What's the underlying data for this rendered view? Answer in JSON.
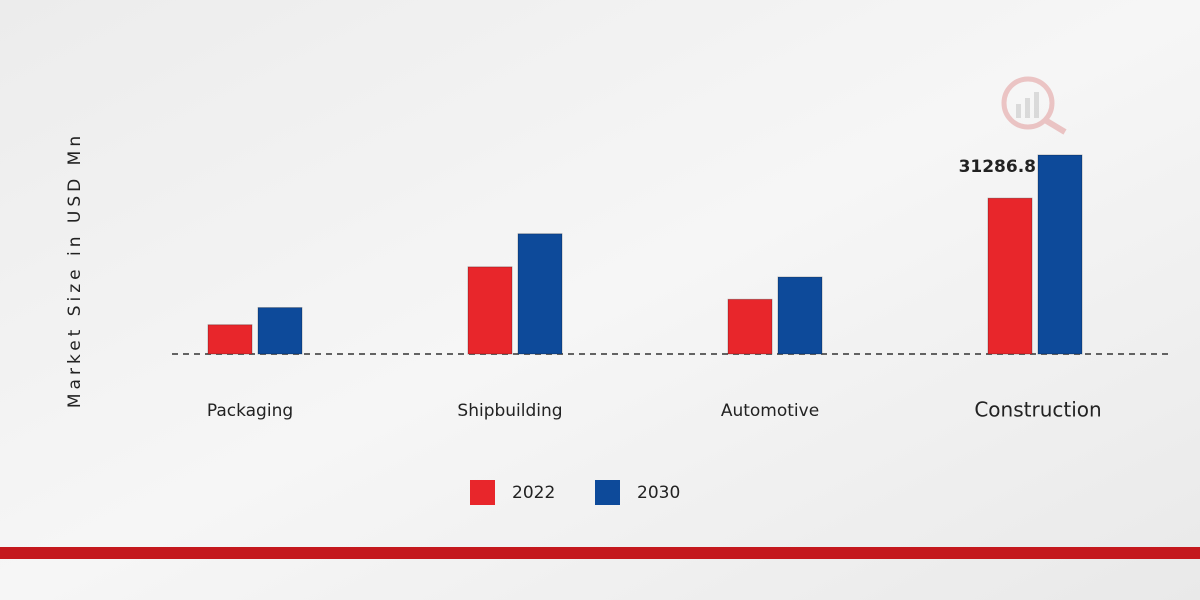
{
  "chart_data": {
    "type": "bar",
    "y_label": "Market Size in USD Mn",
    "categories": [
      "Packaging",
      "Shipbuilding",
      "Automotive",
      "Construction"
    ],
    "series": [
      {
        "name": "2022",
        "color": "#e8262b",
        "values": [
          4600,
          13700,
          8600,
          24500
        ]
      },
      {
        "name": "2030",
        "color": "#0d4a9a",
        "values": [
          7300,
          18900,
          12100,
          31286.8
        ]
      }
    ]
  }
}
